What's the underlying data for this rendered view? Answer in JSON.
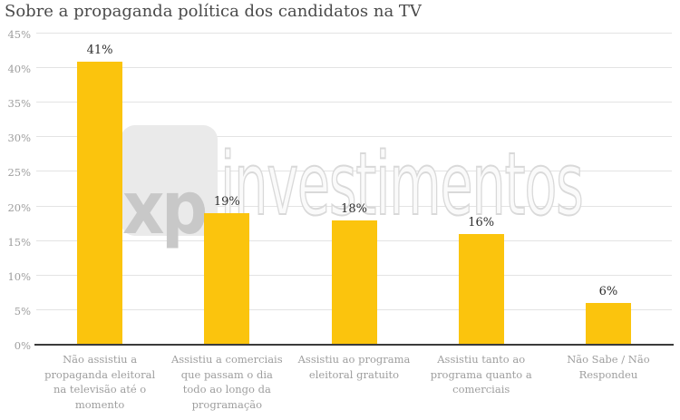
{
  "title": "Sobre a propaganda política dos candidatos na TV",
  "chart_data": {
    "type": "bar",
    "title": "Sobre a propaganda política dos candidatos na TV",
    "categories": [
      "Não assistiu a propaganda eleitoral na televisão até o momento",
      "Assistiu a comerciais que passam o dia todo ao longo da programação",
      "Assistiu ao programa eleitoral gratuito",
      "Assistiu tanto ao programa quanto a comerciais",
      "Não Sabe / Não Respondeu"
    ],
    "values": [
      41,
      19,
      18,
      16,
      6
    ],
    "value_labels": [
      "41%",
      "19%",
      "18%",
      "16%",
      "6%"
    ],
    "xlabel": "",
    "ylabel": "",
    "ylim": [
      0,
      45
    ],
    "yticks": [
      0,
      5,
      10,
      15,
      20,
      25,
      30,
      35,
      40,
      45
    ],
    "ytick_labels": [
      "0%",
      "5%",
      "10%",
      "15%",
      "20%",
      "25%",
      "30%",
      "35%",
      "40%",
      "45%"
    ],
    "grid": true,
    "legend": false,
    "bar_color": "#FBC40D"
  },
  "watermark": {
    "logo_text": "xp",
    "brand_text": "investimentos"
  },
  "colors": {
    "bar": "#FBC40D",
    "title_text": "#4A4A4A",
    "value_label_text": "#2E2E2E",
    "axis_label_text": "#9E9E9E",
    "gridline": "#E3E3E3",
    "axis_line": "#3B3B3B",
    "watermark_square": "#EAEAEA",
    "watermark_xp_text": "#C8C8C8",
    "watermark_brand_outline": "#D9D9D9",
    "background": "#FFFFFF"
  }
}
